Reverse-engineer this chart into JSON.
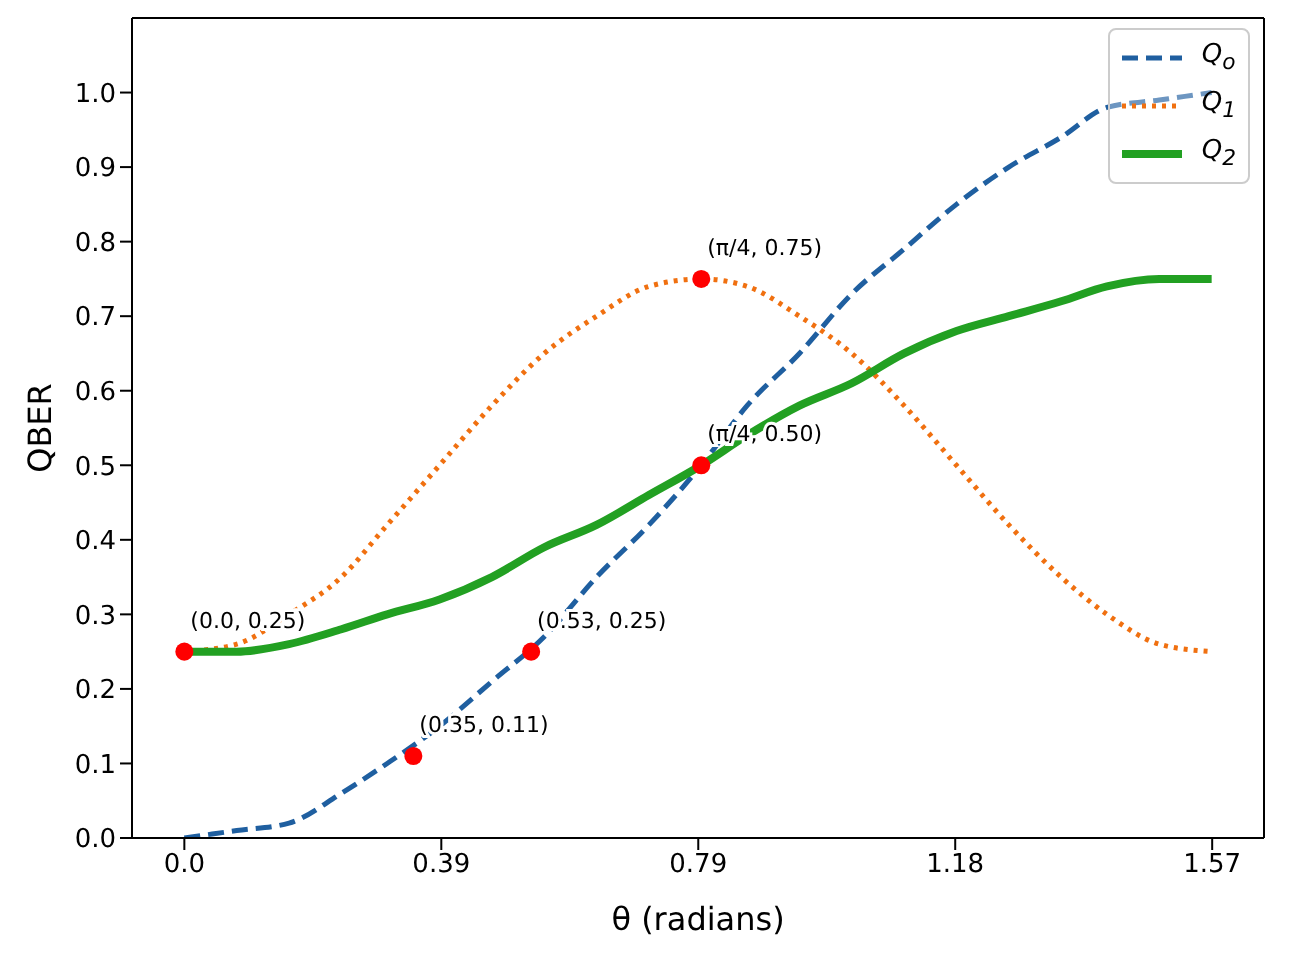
{
  "chart_data": {
    "type": "line",
    "xlabel": "θ (radians)",
    "ylabel": "QBER",
    "xlim": [
      -0.08,
      1.65
    ],
    "ylim": [
      0,
      1.1
    ],
    "xticks": [
      {
        "value": 0,
        "label": "0.0"
      },
      {
        "value": 0.3927,
        "label": "0.39"
      },
      {
        "value": 0.7854,
        "label": "0.79"
      },
      {
        "value": 1.1781,
        "label": "1.18"
      },
      {
        "value": 1.5708,
        "label": "1.57"
      }
    ],
    "yticks": [
      {
        "value": 0,
        "label": "0.0"
      },
      {
        "value": 0.1,
        "label": "0.1"
      },
      {
        "value": 0.2,
        "label": "0.2"
      },
      {
        "value": 0.3,
        "label": "0.3"
      },
      {
        "value": 0.4,
        "label": "0.4"
      },
      {
        "value": 0.5,
        "label": "0.5"
      },
      {
        "value": 0.6,
        "label": "0.6"
      },
      {
        "value": 0.7,
        "label": "0.7"
      },
      {
        "value": 0.8,
        "label": "0.8"
      },
      {
        "value": 0.9,
        "label": "0.9"
      },
      {
        "value": 1.0,
        "label": "1.0"
      }
    ],
    "x": [
      0,
      0.08,
      0.16,
      0.24,
      0.31,
      0.39,
      0.47,
      0.55,
      0.63,
      0.71,
      0.79,
      0.86,
      0.94,
      1.02,
      1.1,
      1.18,
      1.26,
      1.34,
      1.41,
      1.49,
      1.57
    ],
    "series": [
      {
        "name": "Q$_{o}$",
        "color": "#1f5fa0",
        "line_style": "dashed",
        "values": [
          0,
          0.01,
          0.02,
          0.06,
          0.1,
          0.15,
          0.21,
          0.27,
          0.35,
          0.42,
          0.5,
          0.58,
          0.65,
          0.73,
          0.79,
          0.85,
          0.9,
          0.94,
          0.98,
          0.99,
          1.0
        ]
      },
      {
        "name": "Q$_{1}$",
        "color": "#f07010",
        "line_style": "dotted",
        "values": [
          0.25,
          0.26,
          0.3,
          0.35,
          0.42,
          0.5,
          0.58,
          0.65,
          0.7,
          0.74,
          0.75,
          0.74,
          0.7,
          0.65,
          0.58,
          0.5,
          0.42,
          0.35,
          0.3,
          0.26,
          0.25
        ]
      },
      {
        "name": "Q$_{2}$",
        "color": "#22a022",
        "line_style": "solid",
        "values": [
          0.25,
          0.25,
          0.26,
          0.28,
          0.3,
          0.32,
          0.35,
          0.39,
          0.42,
          0.46,
          0.5,
          0.54,
          0.58,
          0.61,
          0.65,
          0.68,
          0.7,
          0.72,
          0.74,
          0.75,
          0.75
        ]
      },
      {
        "type": "scatter",
        "color": "#ff0000",
        "marker": "circle",
        "x": [
          0,
          0.35,
          0.53,
          0.79,
          0.79
        ],
        "values": [
          0.25,
          0.11,
          0.25,
          0.5,
          0.75
        ]
      }
    ],
    "annotations": [
      {
        "text": "(0.0, 0.25)",
        "x": 0,
        "y": 0.25
      },
      {
        "text": "(0.35, 0.11)",
        "x": 0.35,
        "y": 0.11
      },
      {
        "text": "(0.53, 0.25)",
        "x": 0.53,
        "y": 0.25
      },
      {
        "text": "(π/4, 0.50)",
        "x": 0.79,
        "y": 0.5
      },
      {
        "text": "(π/4, 0.75)",
        "x": 0.79,
        "y": 0.75
      }
    ],
    "grid": false,
    "legend": "top right",
    "marker": "none"
  }
}
